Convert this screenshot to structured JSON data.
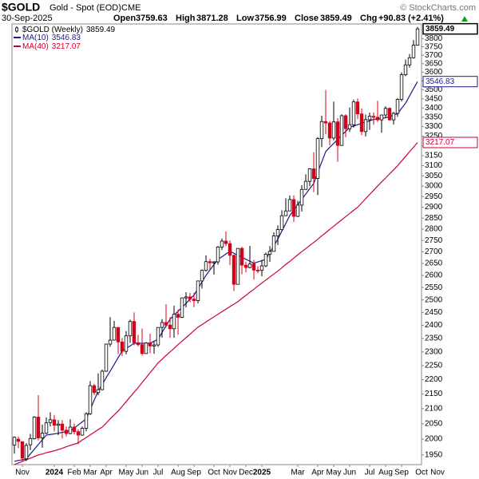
{
  "chart_data": {
    "type": "candlestick",
    "title": "$GOLD",
    "subtitle": "Gold - Spot (EOD)",
    "exchange": "CME",
    "date": "30-Sep-2025",
    "copyright": "© StockCharts.com",
    "header_labels": {
      "open": "Open",
      "high": "High",
      "low": "Low",
      "close": "Close",
      "change": "Chg"
    },
    "change": "+90.83 (+2.41%)",
    "candle_name": "$GOLD (Weekly)",
    "up_color": "#000000",
    "down_color": "#d0021b",
    "log_scale": true,
    "grid": false,
    "legend_position": "top-left",
    "ylim": [
      1920,
      3890
    ],
    "yticks": [
      1950,
      2000,
      2050,
      2100,
      2150,
      2200,
      2250,
      2300,
      2350,
      2400,
      2450,
      2500,
      2550,
      2600,
      2650,
      2700,
      2750,
      2800,
      2850,
      2900,
      2950,
      3000,
      3050,
      3100,
      3150,
      3200,
      3250,
      3300,
      3350,
      3400,
      3450,
      3500,
      3550,
      3600,
      3650,
      3700,
      3750,
      3800
    ],
    "categories": [
      null,
      null,
      "Nov",
      null,
      null,
      null,
      null,
      null,
      null,
      null,
      "2024",
      null,
      null,
      null,
      null,
      "Feb",
      null,
      null,
      null,
      "Mar",
      null,
      null,
      null,
      "Apr",
      null,
      null,
      null,
      null,
      "May",
      null,
      null,
      null,
      "Jun",
      null,
      null,
      null,
      "Jul",
      null,
      null,
      null,
      null,
      "Aug",
      null,
      null,
      null,
      "Sep",
      null,
      null,
      null,
      null,
      "Oct",
      null,
      null,
      null,
      "Nov",
      null,
      null,
      null,
      "Dec",
      null,
      null,
      null,
      "2025",
      null,
      null,
      null,
      null,
      null,
      null,
      null,
      null,
      "Mar",
      null,
      null,
      null,
      null,
      "Apr",
      null,
      null,
      null,
      "May",
      null,
      null,
      null,
      "Jun",
      null,
      null,
      null,
      null,
      "Jul",
      null,
      null,
      null,
      "Aug",
      null,
      null,
      null,
      "Sep",
      null,
      null,
      null,
      null,
      "Oct",
      null,
      null,
      null,
      "Nov",
      null
    ],
    "open": [
      1981,
      2000,
      1992,
      1938,
      1982,
      2001,
      2072,
      2004,
      2019,
      2054,
      2063,
      2045,
      2049,
      2029,
      2018,
      2039,
      2024,
      2013,
      2035,
      2083,
      2179,
      2155,
      2165,
      2230,
      2329,
      2344,
      2392,
      2337,
      2302,
      2360,
      2415,
      2334,
      2327,
      2294,
      2333,
      2322,
      2326,
      2392,
      2411,
      2401,
      2387,
      2443,
      2431,
      2508,
      2512,
      2503,
      2497,
      2577,
      2621,
      2658,
      2653,
      2657,
      2721,
      2747,
      2736,
      2685,
      2563,
      2715,
      2643,
      2633,
      2648,
      2622,
      2621,
      2640,
      2690,
      2702,
      2770,
      2798,
      2861,
      2883,
      2936,
      2858,
      2910,
      2984,
      3023,
      3084,
      3037,
      3237,
      3327,
      3319,
      3240,
      3325,
      3202,
      3358,
      3289,
      3310,
      3433,
      3368,
      3274,
      3337,
      3355,
      3350,
      3336,
      3362,
      3398,
      3336,
      3371,
      3447,
      3586,
      3643,
      3685,
      3759.63,
      null,
      null,
      null,
      null,
      null,
      null
    ],
    "high": [
      2009,
      2009,
      1993,
      1987,
      2017,
      2075,
      2146,
      2047,
      2071,
      2088,
      2079,
      2062,
      2062,
      2041,
      2065,
      2051,
      2031,
      2041,
      2088,
      2195,
      2185,
      2222,
      2236,
      2331,
      2432,
      2417,
      2392,
      2352,
      2378,
      2422,
      2450,
      2364,
      2388,
      2336,
      2368,
      2339,
      2392,
      2424,
      2483,
      2432,
      2477,
      2462,
      2510,
      2531,
      2528,
      2529,
      2578,
      2625,
      2685,
      2670,
      2660,
      2725,
      2758,
      2790,
      2750,
      2689,
      2716,
      2722,
      2658,
      2726,
      2665,
      2639,
      2665,
      2697,
      2725,
      2786,
      2817,
      2886,
      2942,
      2955,
      2956,
      2930,
      3004,
      3057,
      3087,
      3167,
      3245,
      3358,
      3500,
      3330,
      3435,
      3345,
      3366,
      3366,
      3403,
      3446,
      3452,
      3398,
      3365,
      3375,
      3375,
      3439,
      3363,
      3409,
      3404,
      3379,
      3453,
      3599,
      3674,
      3707,
      3791,
      3871.28,
      null,
      null,
      null,
      null,
      null,
      null
    ],
    "low": [
      1954,
      1971,
      1932,
      1931,
      1965,
      1999,
      1996,
      1973,
      2016,
      2041,
      2025,
      2013,
      2002,
      2009,
      2016,
      2015,
      1984,
      2011,
      2025,
      2079,
      2146,
      2146,
      2163,
      2228,
      2319,
      2342,
      2292,
      2285,
      2291,
      2334,
      2325,
      2320,
      2286,
      2293,
      2295,
      2293,
      2319,
      2353,
      2392,
      2353,
      2353,
      2364,
      2428,
      2470,
      2490,
      2471,
      2486,
      2546,
      2616,
      2624,
      2603,
      2645,
      2708,
      2725,
      2643,
      2536,
      2563,
      2605,
      2613,
      2630,
      2583,
      2609,
      2596,
      2635,
      2657,
      2702,
      2730,
      2794,
      2860,
      2882,
      2833,
      2855,
      2880,
      2982,
      3000,
      2971,
      2957,
      3193,
      3260,
      3202,
      3228,
      3120,
      3205,
      3245,
      3272,
      3295,
      3340,
      3255,
      3248,
      3283,
      3310,
      3325,
      3268,
      3347,
      3331,
      3311,
      3352,
      3436,
      3578,
      3627,
      3680,
      3756.99,
      null,
      null,
      null,
      null,
      null,
      null
    ],
    "close": [
      2006,
      1993,
      1940,
      1980,
      2002,
      2072,
      2004,
      2019,
      2053,
      2063,
      2045,
      2049,
      2029,
      2018,
      2039,
      2024,
      2013,
      2035,
      2083,
      2179,
      2155,
      2165,
      2230,
      2329,
      2344,
      2392,
      2337,
      2302,
      2360,
      2415,
      2334,
      2327,
      2294,
      2333,
      2322,
      2326,
      2392,
      2411,
      2401,
      2387,
      2443,
      2431,
      2508,
      2512,
      2503,
      2497,
      2577,
      2621,
      2658,
      2653,
      2657,
      2721,
      2747,
      2736,
      2685,
      2563,
      2715,
      2643,
      2633,
      2648,
      2622,
      2621,
      2640,
      2690,
      2702,
      2770,
      2798,
      2861,
      2883,
      2936,
      2858,
      2910,
      2984,
      3023,
      3084,
      3037,
      3237,
      3327,
      3319,
      3240,
      3325,
      3202,
      3358,
      3289,
      3310,
      3433,
      3368,
      3274,
      3337,
      3355,
      3350,
      3336,
      3362,
      3398,
      3336,
      3371,
      3447,
      3586,
      3643,
      3685,
      3760,
      3859.49,
      null,
      null,
      null,
      null,
      null,
      null
    ],
    "series": [
      {
        "name": "MA(10)",
        "color": "#1a1a8c",
        "values": [
          1930,
          1933,
          1935,
          1938,
          1953,
          1968,
          1983,
          1998,
          2013,
          2015,
          2017,
          2019,
          2022,
          2024,
          2026,
          2036,
          2046,
          2056,
          2066,
          2097,
          2129,
          2160,
          2183,
          2207,
          2230,
          2254,
          2279,
          2303,
          2313,
          2322,
          2332,
          2332,
          2332,
          2332,
          2332,
          2340,
          2347,
          2373,
          2398,
          2424,
          2439,
          2455,
          2470,
          2486,
          2503,
          2519,
          2546,
          2573,
          2600,
          2623,
          2645,
          2668,
          2679,
          2691,
          2702,
          2694,
          2685,
          2677,
          2668,
          2660,
          2651,
          2657,
          2662,
          2668,
          2697,
          2726,
          2755,
          2791,
          2826,
          2862,
          2887,
          2912,
          2937,
          2962,
          2988,
          3013,
          3066,
          3118,
          3171,
          3192,
          3212,
          3233,
          3254,
          3275,
          3296,
          3303,
          3310,
          3317,
          3324,
          3331,
          3338,
          3341,
          3344,
          3347,
          3354,
          3362,
          3369,
          3398,
          3426,
          3466,
          3507,
          3546.83,
          null,
          null,
          null,
          null,
          null,
          null
        ]
      },
      {
        "name": "MA(40)",
        "color": "#cc0033",
        "values": [
          1920,
          1925,
          1930,
          1935,
          1940,
          1945,
          1950,
          1953,
          1957,
          1960,
          1963,
          1967,
          1971,
          1976,
          1980,
          1984,
          1988,
          1997,
          2005,
          2014,
          2022,
          2031,
          2039,
          2052,
          2066,
          2079,
          2092,
          2108,
          2124,
          2140,
          2156,
          2172,
          2190,
          2207,
          2225,
          2242,
          2260,
          2273,
          2287,
          2300,
          2313,
          2327,
          2340,
          2353,
          2366,
          2380,
          2393,
          2403,
          2413,
          2423,
          2433,
          2443,
          2453,
          2463,
          2473,
          2483,
          2493,
          2506,
          2518,
          2531,
          2543,
          2556,
          2568,
          2581,
          2593,
          2606,
          2618,
          2632,
          2646,
          2659,
          2673,
          2687,
          2701,
          2714,
          2728,
          2741,
          2755,
          2770,
          2784,
          2799,
          2813,
          2828,
          2842,
          2857,
          2871,
          2886,
          2900,
          2920,
          2940,
          2960,
          2980,
          3000,
          3020,
          3039,
          3059,
          3079,
          3099,
          3123,
          3146,
          3170,
          3193,
          3217.07,
          null,
          null,
          null,
          null,
          null,
          null
        ]
      }
    ]
  }
}
